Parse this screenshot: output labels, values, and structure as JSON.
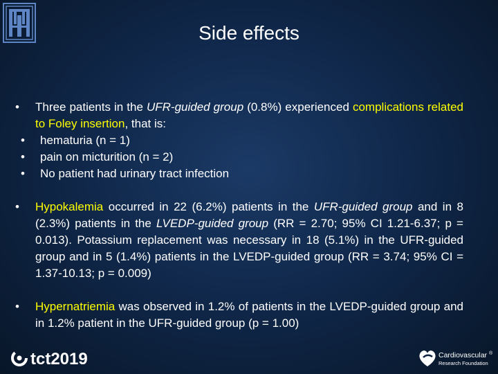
{
  "slide": {
    "title": "Side effects",
    "bullets": [
      {
        "parts": [
          {
            "text": "Three patients in the ",
            "style": "normal"
          },
          {
            "text": "UFR-guided group",
            "style": "italic"
          },
          {
            "text": " (0.8%) experienced ",
            "style": "normal"
          },
          {
            "text": "complications related to Foley insertion",
            "style": "highlight"
          },
          {
            "text": ", that is:",
            "style": "normal"
          }
        ],
        "sub_items": [
          "hematuria (n = 1)",
          "pain on micturition (n = 2)",
          "No patient had urinary tract infection"
        ]
      },
      {
        "parts": [
          {
            "text": "Hypokalemia",
            "style": "highlight"
          },
          {
            "text": " occurred in 22 (6.2%) patients in the ",
            "style": "normal"
          },
          {
            "text": "UFR-guided group",
            "style": "italic"
          },
          {
            "text": " and in 8 (2.3%) patients in the ",
            "style": "normal"
          },
          {
            "text": "LVEDP-guided group",
            "style": "italic"
          },
          {
            "text": " (RR = 2.70; 95% CI 1.21-6.37; p = 0.013). Potassium replacement was necessary in 18 (5.1%) in the UFR-guided group and in 5 (1.4%) patients in the LVEDP-guided group (RR = 3.74; 95% CI = 1.37-10.13; p = 0.009)",
            "style": "normal"
          }
        ]
      },
      {
        "parts": [
          {
            "text": "Hypernatriemia",
            "style": "highlight"
          },
          {
            "text": " was observed in 1.2% of patients in the LVEDP-guided group and in 1.2% patient in the UFR-guided group (p = 1.00)",
            "style": "normal"
          }
        ]
      }
    ]
  },
  "footer": {
    "tct_logo_text": "tct2019",
    "crf_logo_line1": "Cardiovascular",
    "crf_logo_line2": "Research Foundation",
    "crf_registered": "®"
  },
  "colors": {
    "highlight": "#ffff00",
    "text": "#ffffff",
    "background": "#10284b"
  },
  "icons": {
    "top_logo": "hospital-emblem-icon",
    "tct": "tct-swirl-icon",
    "crf": "heart-logo-icon"
  }
}
